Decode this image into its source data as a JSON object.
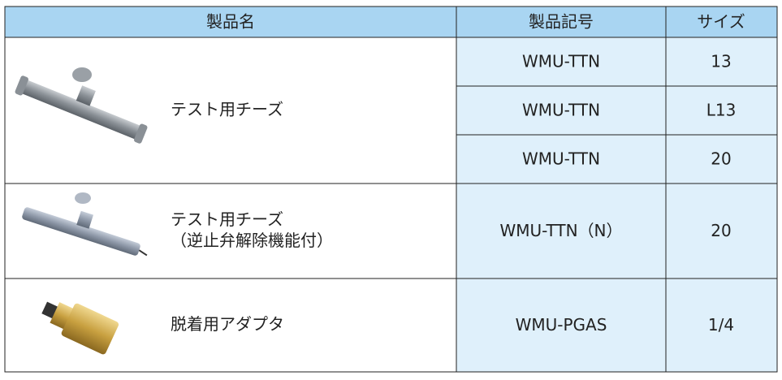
{
  "table": {
    "header": [
      "製品名",
      "製品記号",
      "サイズ"
    ],
    "rows": [
      {
        "name": [
          "テスト用チーズ"
        ],
        "variants": [
          {
            "code": "WMU-TTN",
            "size": "13"
          },
          {
            "code": "WMU-TTN",
            "size": "L13"
          },
          {
            "code": "WMU-TTN",
            "size": "20"
          }
        ]
      },
      {
        "name": [
          "テスト用チーズ",
          "（逆止弁解除機能付）"
        ],
        "variants": [
          {
            "code": "WMU-TTN（N）",
            "size": "20"
          }
        ]
      },
      {
        "name": [
          "脱着用アダプタ"
        ],
        "variants": [
          {
            "code": "WMU-PGAS",
            "size": "1/4"
          }
        ]
      }
    ]
  }
}
